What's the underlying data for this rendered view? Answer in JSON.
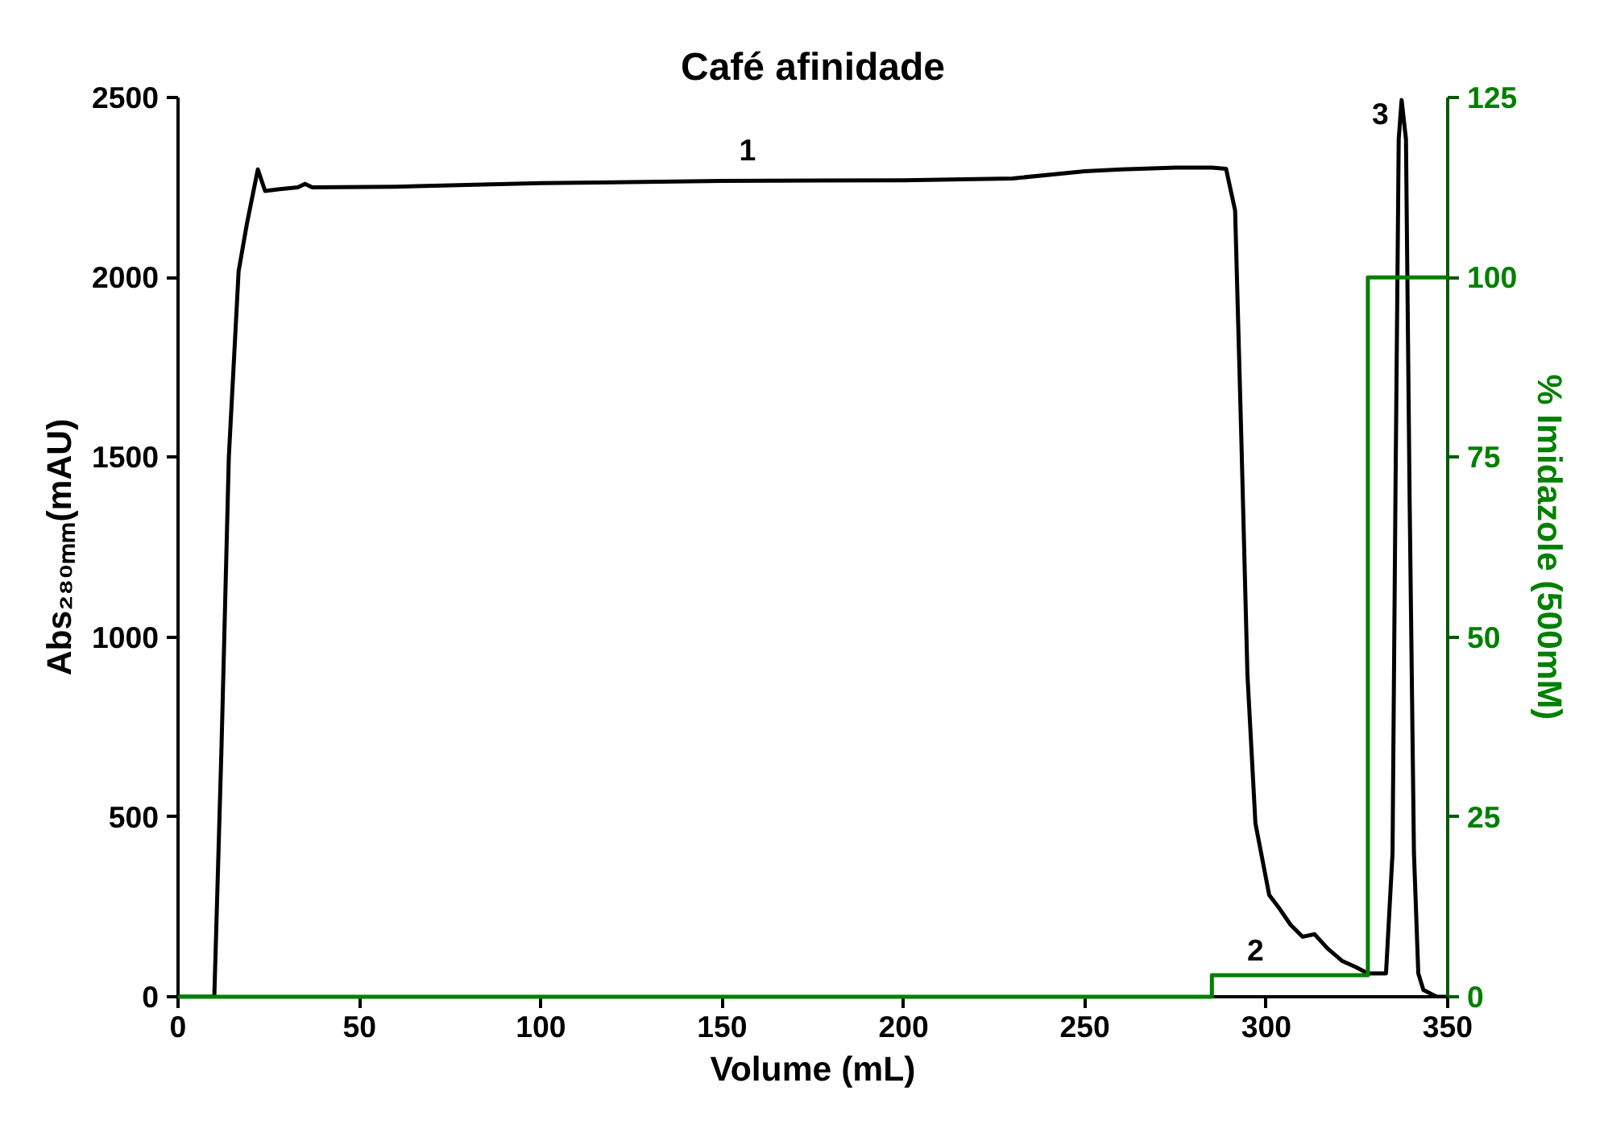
{
  "chart_data": {
    "type": "line",
    "title": "Café afinidade",
    "xlabel": "Volume (mL)",
    "ylabel": "Abs₂₈₀ₘₘ(mAU)",
    "y2label": "% Imidazole (500mM)",
    "xlim": [
      0,
      350
    ],
    "xticks": [
      0,
      50,
      100,
      150,
      200,
      250,
      300,
      350
    ],
    "ylim": [
      0,
      2500
    ],
    "yticks": [
      0,
      500,
      1000,
      1500,
      2000,
      2500
    ],
    "y2lim": [
      0,
      125
    ],
    "y2ticks": [
      0,
      25,
      50,
      75,
      100,
      125
    ],
    "grid": false,
    "marker": "none",
    "line_style": "solid",
    "series": [
      {
        "color": "#000000",
        "x": [
          0,
          10,
          12,
          14,
          16.7,
          19,
          22,
          24,
          28,
          33,
          35,
          37,
          60,
          100,
          150,
          200,
          230,
          250,
          260,
          275,
          285,
          288.9,
          291.4,
          293.1,
          294.8,
          297,
          300.8,
          303.3,
          306.7,
          310,
          313.3,
          316.9,
          321,
          324.6,
          328,
          331.4,
          333,
          334.8,
          335.6,
          336.5,
          337.3,
          338.5,
          339.5,
          340.7,
          341.9,
          343.3,
          347,
          350
        ],
        "values": [
          0,
          0,
          700,
          1500,
          2017,
          2150,
          2300,
          2240,
          2245,
          2250,
          2260,
          2250,
          2252,
          2262,
          2268,
          2270,
          2275,
          2295,
          2300,
          2305,
          2305,
          2302,
          2186,
          1558,
          895,
          482,
          283,
          250,
          200,
          167,
          174,
          134,
          99,
          83,
          65,
          65,
          65,
          400,
          1391,
          2384,
          2493,
          2384,
          1391,
          400,
          65,
          19,
          0,
          0
        ]
      },
      {
        "type": "step",
        "axis": "y2",
        "color": "#008000",
        "x": [
          0,
          285,
          328,
          350
        ],
        "values": [
          0,
          3,
          100,
          100
        ]
      }
    ],
    "annotations": [
      {
        "text": "1",
        "x": 157,
        "y": 2290
      },
      {
        "text": "2",
        "x": 297,
        "y": 65
      },
      {
        "text": "3",
        "x": 337.3,
        "y": 2493
      }
    ]
  }
}
